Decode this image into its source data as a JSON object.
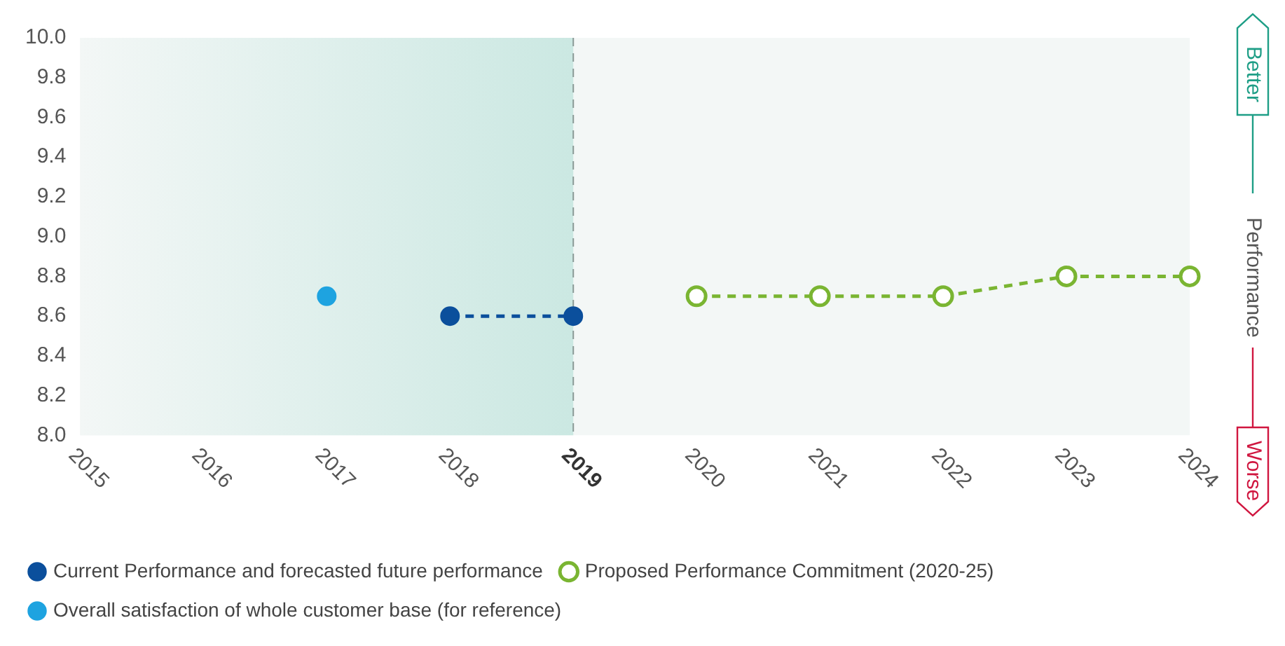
{
  "chart_data": {
    "type": "line",
    "categories": [
      "2015",
      "2016",
      "2017",
      "2018",
      "2019",
      "2020",
      "2021",
      "2022",
      "2023",
      "2024"
    ],
    "series": [
      {
        "name": "Current Performance and forecasted future performance",
        "color": "#0b4f9c",
        "values": [
          null,
          null,
          null,
          8.6,
          8.6,
          null,
          null,
          null,
          null,
          null
        ],
        "line_style": "dashed",
        "marker": "circle"
      },
      {
        "name": "Proposed Performance Commitment (2020-25)",
        "color": "#7ab532",
        "values": [
          null,
          null,
          null,
          null,
          null,
          8.7,
          8.7,
          8.7,
          8.8,
          8.8
        ],
        "line_style": "dashed",
        "marker": "circle"
      },
      {
        "name": "Overall satisfaction of whole customer base (for reference)",
        "color": "#1ea3e0",
        "values": [
          null,
          null,
          8.7,
          null,
          null,
          null,
          null,
          null,
          null,
          null
        ],
        "type": "scatter",
        "marker": "circle"
      }
    ],
    "ylim": [
      8.0,
      10.0
    ],
    "yticks": [
      {
        "value": 8.0,
        "label": "8.0"
      },
      {
        "value": 8.2,
        "label": "8.2"
      },
      {
        "value": 8.4,
        "label": "8.4"
      },
      {
        "value": 8.6,
        "label": "8.6"
      },
      {
        "value": 8.8,
        "label": "8.8"
      },
      {
        "value": 9.0,
        "label": "9.0"
      },
      {
        "value": 9.2,
        "label": "9.2"
      },
      {
        "value": 9.4,
        "label": "9.4"
      },
      {
        "value": 9.6,
        "label": "9.6"
      },
      {
        "value": 9.8,
        "label": "9.8"
      },
      {
        "value": 10.0,
        "label": "10.0"
      }
    ],
    "bands": [
      {
        "axis": "x",
        "from": "2015",
        "to": "2019",
        "color": "#cbe8e2"
      }
    ],
    "ref_lines": [
      {
        "axis": "x",
        "value": "2019",
        "color": "#8a9a96",
        "line_style": "dashed"
      }
    ],
    "annotations": [
      "Better",
      "Performance",
      "Worse"
    ],
    "legend": "bottom",
    "grid": false
  }
}
